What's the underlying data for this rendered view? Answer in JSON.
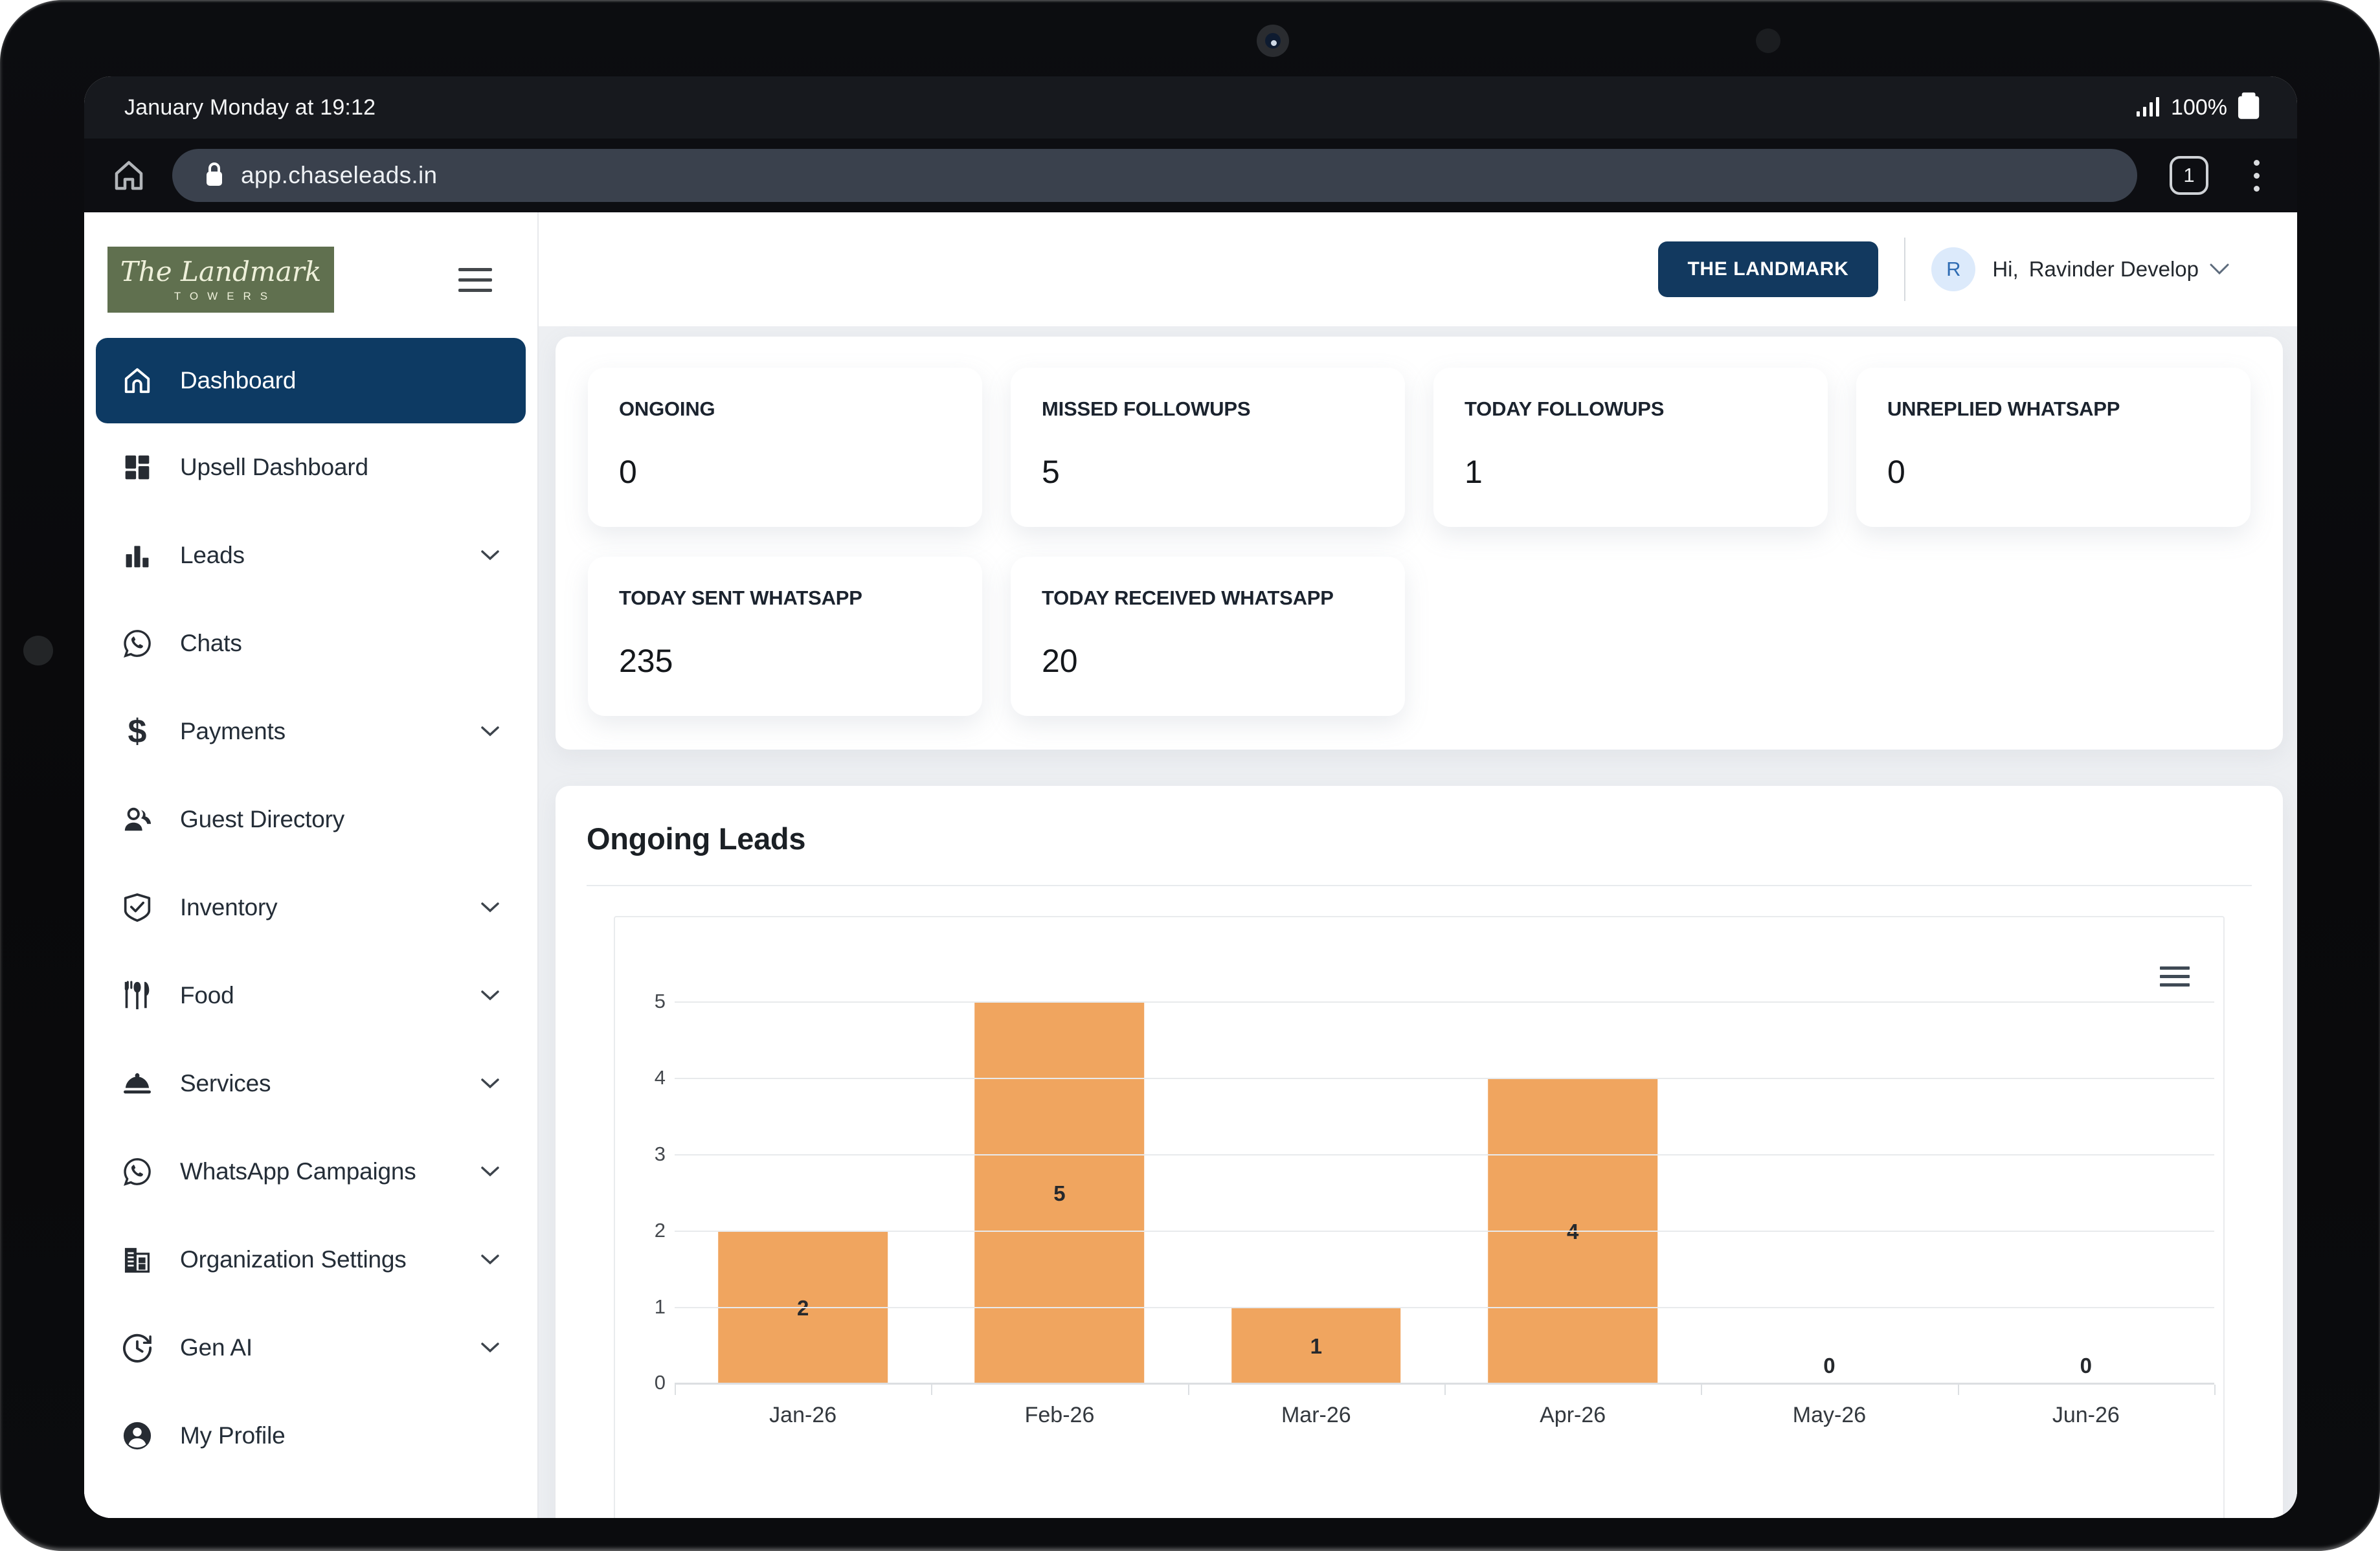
{
  "device": {
    "status_bar": {
      "time": "January Monday at 19:12",
      "battery_pct": "100%"
    },
    "browser": {
      "url": "app.chaseleads.in",
      "tab_count": "1"
    }
  },
  "sidebar": {
    "logo": {
      "line1": "The Landmark",
      "line2": "TOWERS"
    },
    "items": [
      {
        "label": "Dashboard",
        "active": true,
        "has_chevron": false
      },
      {
        "label": "Upsell Dashboard",
        "active": false,
        "has_chevron": false
      },
      {
        "label": "Leads",
        "active": false,
        "has_chevron": true
      },
      {
        "label": "Chats",
        "active": false,
        "has_chevron": false
      },
      {
        "label": "Payments",
        "active": false,
        "has_chevron": true
      },
      {
        "label": "Guest Directory",
        "active": false,
        "has_chevron": false
      },
      {
        "label": "Inventory",
        "active": false,
        "has_chevron": true
      },
      {
        "label": "Food",
        "active": false,
        "has_chevron": true
      },
      {
        "label": "Services",
        "active": false,
        "has_chevron": true
      },
      {
        "label": "WhatsApp Campaigns",
        "active": false,
        "has_chevron": true
      },
      {
        "label": "Organization Settings",
        "active": false,
        "has_chevron": true
      },
      {
        "label": "Gen AI",
        "active": false,
        "has_chevron": true
      },
      {
        "label": "My Profile",
        "active": false,
        "has_chevron": false
      }
    ]
  },
  "header": {
    "org_button": "THE LANDMARK",
    "avatar_initial": "R",
    "greeting": "Hi,",
    "user_name": "Ravinder Develop"
  },
  "stats": {
    "cards": [
      {
        "label": "ONGOING",
        "value": "0"
      },
      {
        "label": "MISSED FOLLOWUPS",
        "value": "5"
      },
      {
        "label": "TODAY FOLLOWUPS",
        "value": "1"
      },
      {
        "label": "UNREPLIED WHATSAPP",
        "value": "0"
      },
      {
        "label": "TODAY SENT WHATSAPP",
        "value": "235"
      },
      {
        "label": "TODAY RECEIVED WHATSAPP",
        "value": "20"
      }
    ]
  },
  "leads_section": {
    "title": "Ongoing Leads"
  },
  "chart_data": {
    "type": "bar",
    "title": "Ongoing Leads",
    "categories": [
      "Jan-26",
      "Feb-26",
      "Mar-26",
      "Apr-26",
      "May-26",
      "Jun-26"
    ],
    "values": [
      2,
      5,
      1,
      4,
      0,
      0
    ],
    "xlabel": "",
    "ylabel": "",
    "ylim": [
      0,
      5
    ],
    "yticks": [
      0,
      1,
      2,
      3,
      4,
      5
    ],
    "grid": true,
    "bar_color": "#f0a55f",
    "legend_position": "none"
  },
  "colors": {
    "accent_navy": "#0d3a63",
    "bar_orange": "#f0a55f",
    "logo_olive": "#60704f",
    "content_bg": "#edeff2"
  }
}
